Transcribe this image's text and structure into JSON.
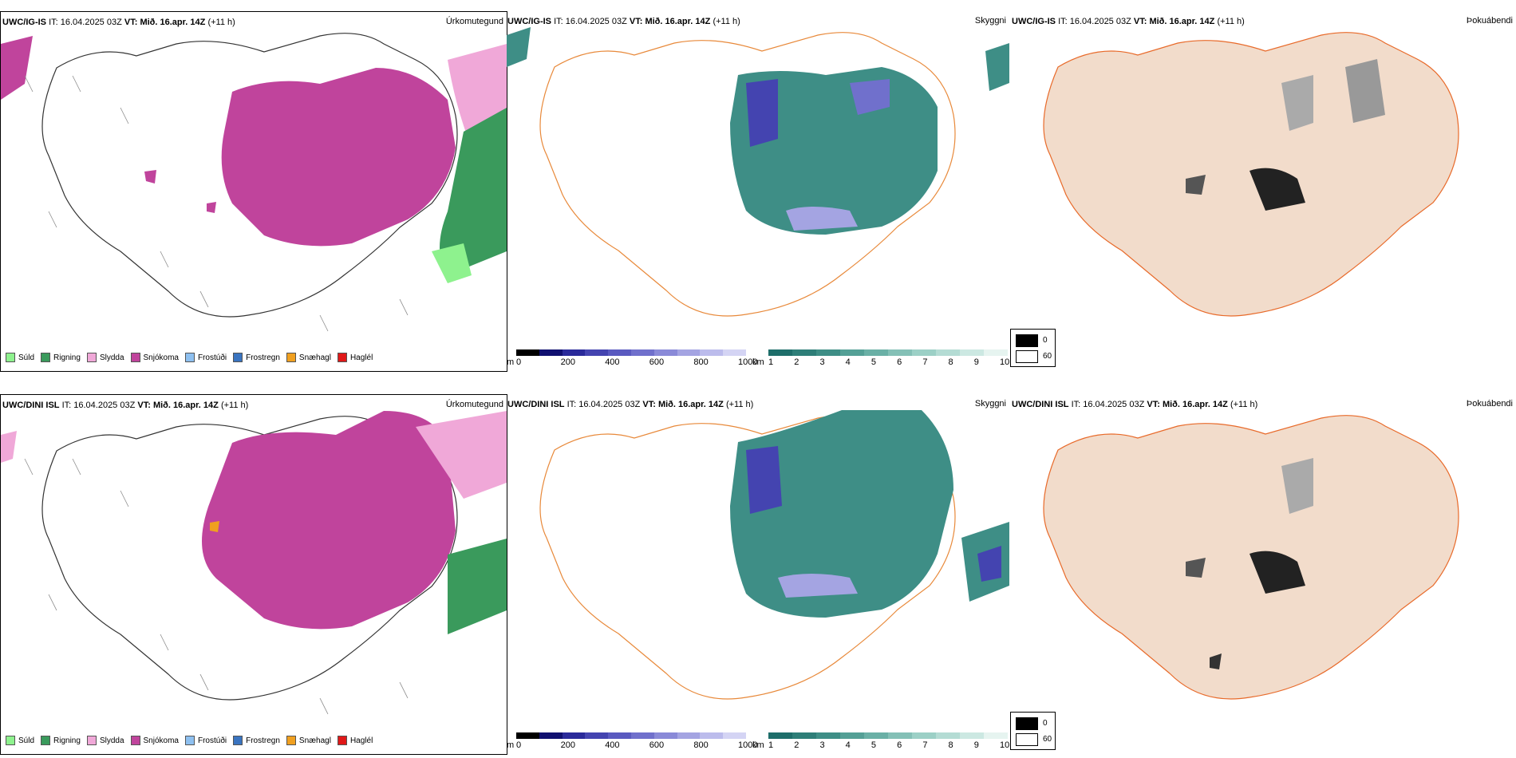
{
  "rows": [
    {
      "model": "UWC/IG-IS",
      "it_label": "IT:",
      "it_value": "16.04.2025 03Z",
      "vt_label": "VT:",
      "vt_value": "Mið. 16.apr. 14Z",
      "lead": "(+11 h)"
    },
    {
      "model": "UWC/DINI ISL",
      "it_label": "IT:",
      "it_value": "16.04.2025 03Z",
      "vt_label": "VT:",
      "vt_value": "Mið. 16.apr. 14Z",
      "lead": "(+11 h)"
    }
  ],
  "panel_titles": {
    "precip": "Úrkomutegund",
    "visibility": "Skyggni",
    "fog": "Þokuábendi"
  },
  "precip_legend": [
    {
      "label": "Súld",
      "color": "#8ef28e"
    },
    {
      "label": "Rigning",
      "color": "#3a9a5c"
    },
    {
      "label": "Slydda",
      "color": "#f0a8d8"
    },
    {
      "label": "Snjókoma",
      "color": "#c0449c"
    },
    {
      "label": "Frostúði",
      "color": "#8ec0f0"
    },
    {
      "label": "Frostregn",
      "color": "#3a74c0"
    },
    {
      "label": "Snæhagl",
      "color": "#f0a020"
    },
    {
      "label": "Haglél",
      "color": "#e01818"
    }
  ],
  "ceiling_bar": {
    "unit": "m",
    "ticks": [
      "0",
      "200",
      "400",
      "600",
      "800",
      "1000"
    ],
    "colors": [
      "#000000",
      "#101070",
      "#2a2a9a",
      "#4444b0",
      "#5a5ac0",
      "#7070cc",
      "#8a8ad8",
      "#a4a4e2",
      "#bcbcec",
      "#d4d4f4"
    ]
  },
  "visibility_bar": {
    "unit": "km",
    "ticks": [
      "1",
      "2",
      "3",
      "4",
      "5",
      "6",
      "7",
      "8",
      "9",
      "10"
    ],
    "colors": [
      "#1e6e6a",
      "#2e7e78",
      "#3e8e86",
      "#54a096",
      "#6ab0a6",
      "#84c0b6",
      "#9cd0c6",
      "#b4dcd4",
      "#cce8e2",
      "#e6f4f0"
    ]
  },
  "fog_legend": [
    {
      "label": "0",
      "color": "#000000"
    },
    {
      "label": "60",
      "color": "#ffffff"
    }
  ],
  "colors": {
    "snow": "#c0449c",
    "sleet": "#f0a8d8",
    "rain": "#3a9a5c",
    "drizzle": "#8ef28e",
    "teal": "#3e8e86",
    "land": "#f2dccb",
    "roads": "#e86a2a",
    "rivers": "#8c9cf0"
  }
}
